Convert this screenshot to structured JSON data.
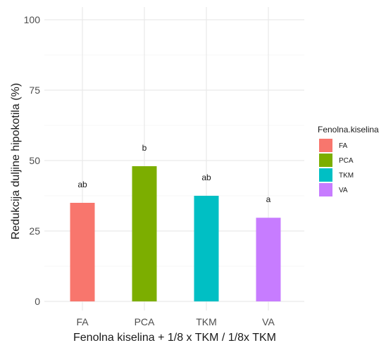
{
  "chart_data": {
    "type": "bar",
    "categories": [
      "FA",
      "PCA",
      "TKM",
      "VA"
    ],
    "values": [
      35,
      48,
      37.5,
      29.7
    ],
    "significance_labels": [
      "ab",
      "b",
      "ab",
      "a"
    ],
    "colors": [
      "#F8766D",
      "#7CAE00",
      "#00BFC4",
      "#C77CFF"
    ],
    "xlabel": "Fenolna kiselina + 1/8 x TKM / 1/8x TKM",
    "ylabel": "Redukcija duljine hipokotila (%)",
    "ylim": [
      0,
      100
    ],
    "yticks": [
      0,
      25,
      50,
      75,
      100
    ],
    "grid": true,
    "legend": {
      "title": "Fenolna.kiselina",
      "position": "right",
      "entries": [
        "FA",
        "PCA",
        "TKM",
        "VA"
      ]
    }
  }
}
